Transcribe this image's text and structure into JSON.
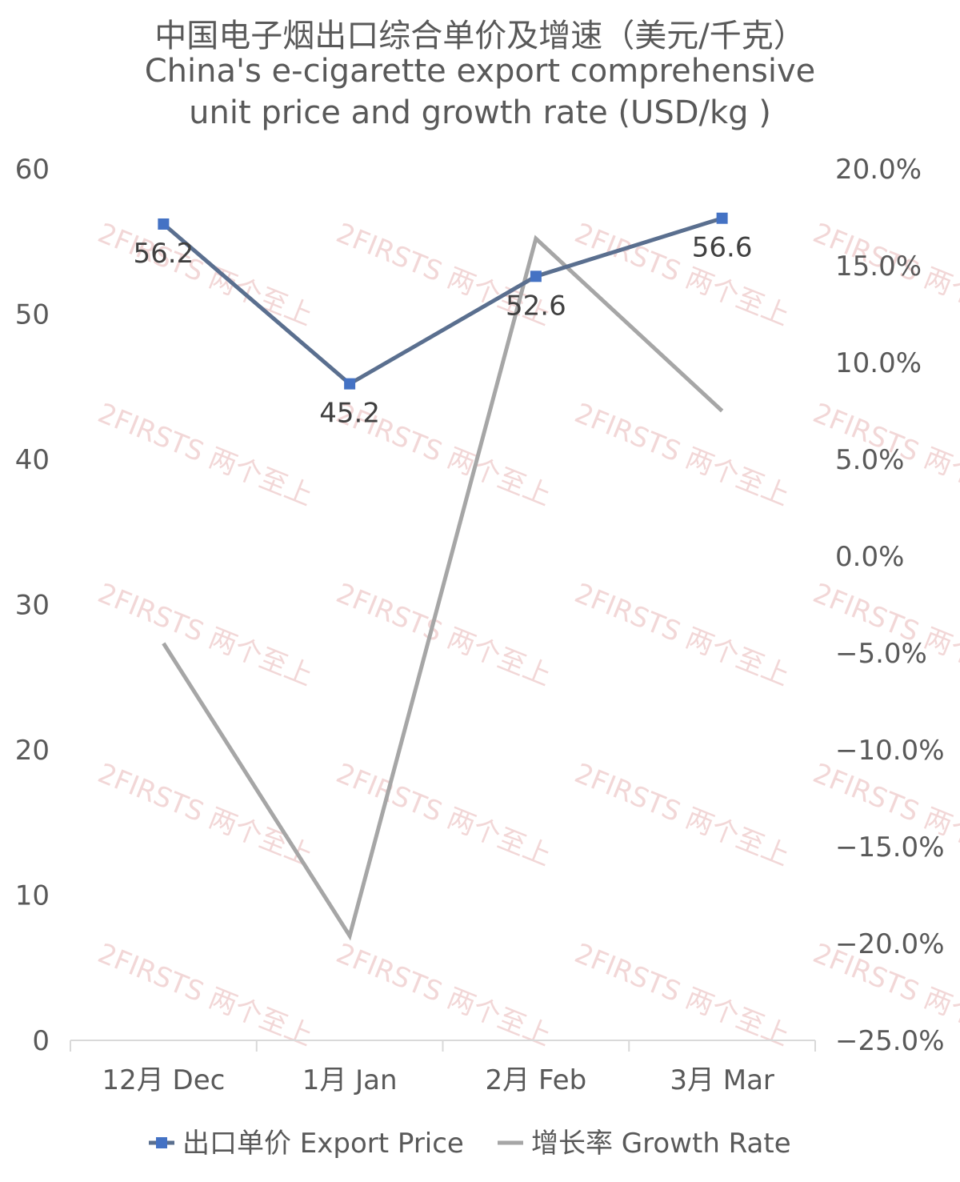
{
  "chart_data": {
    "type": "line",
    "title_cn": "中国电子烟出口综合单价及增速（美元/千克）",
    "title_en_line1": "China's e-cigarette export comprehensive",
    "title_en_line2": "unit price and growth rate (USD/kg )",
    "categories": [
      "12月 Dec",
      "1月 Jan",
      "2月 Feb",
      "3月 Mar"
    ],
    "y_left": {
      "min": 0,
      "max": 60,
      "step": 10,
      "ticks": [
        "0",
        "10",
        "20",
        "30",
        "40",
        "50",
        "60"
      ]
    },
    "y_right": {
      "min": -25,
      "max": 20,
      "step": 5,
      "ticks": [
        "−25.0%",
        "−20.0%",
        "−15.0%",
        "−10.0%",
        "−5.0%",
        "0.0%",
        "5.0%",
        "10.0%",
        "15.0%",
        "20.0%"
      ]
    },
    "series": [
      {
        "name": "出口单价 Export Price",
        "axis": "left",
        "values": [
          56.2,
          45.2,
          52.6,
          56.6
        ],
        "labels": [
          "56.2",
          "45.2",
          "52.6",
          "56.6"
        ],
        "color": "#5a6f8f",
        "marker_color": "#4472c4"
      },
      {
        "name": "增长率 Growth Rate",
        "axis": "right",
        "values": [
          -4.5,
          -19.6,
          16.4,
          7.5
        ],
        "color": "#a6a6a6"
      }
    ],
    "legend_position": "bottom",
    "grid": false,
    "watermark": "2FIRSTS 两个至上"
  }
}
